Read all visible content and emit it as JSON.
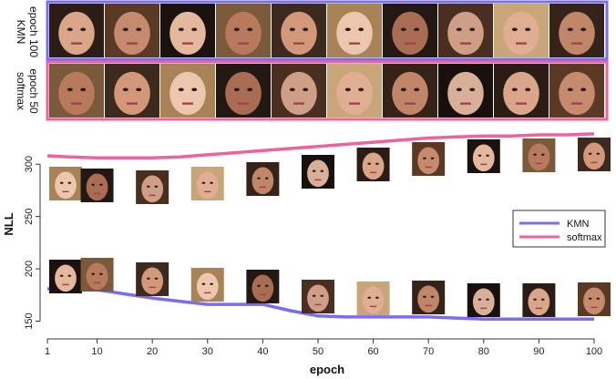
{
  "sample_grids": [
    {
      "label_line1": "KMN",
      "label_line2": "epoch 100",
      "border_color": "#7b6cf6",
      "tiles": 10
    },
    {
      "label_line1": "softmax",
      "label_line2": "epoch 50",
      "border_color": "#f0629a",
      "tiles": 10
    }
  ],
  "chart_data": {
    "type": "line",
    "title": "",
    "xlabel": "epoch",
    "ylabel": "NLL",
    "xlim": [
      1,
      100
    ],
    "ylim": [
      140,
      335
    ],
    "xticks": [
      1,
      10,
      20,
      30,
      40,
      50,
      60,
      70,
      80,
      90,
      100
    ],
    "yticks": [
      150,
      200,
      250,
      300
    ],
    "grid": false,
    "legend_position": "right",
    "x": [
      1,
      5,
      10,
      15,
      20,
      25,
      30,
      35,
      40,
      45,
      50,
      55,
      60,
      65,
      70,
      75,
      80,
      85,
      90,
      95,
      100
    ],
    "series": [
      {
        "name": "KMN",
        "color": "#7b6cf6",
        "values": [
          181,
          180,
          180,
          176,
          172,
          169,
          166,
          166,
          166,
          160,
          155,
          154,
          154,
          154,
          154,
          153,
          152,
          152,
          152,
          152,
          152
        ]
      },
      {
        "name": "softmax",
        "color": "#f0629a",
        "values": [
          308,
          307,
          306,
          306,
          306,
          307,
          309,
          311,
          313,
          315,
          317,
          319,
          321,
          323,
          325,
          326,
          327,
          327,
          328,
          328,
          329
        ]
      }
    ],
    "face_samples": {
      "KMN": {
        "epochs": [
          1,
          10,
          20,
          30,
          40,
          50,
          60,
          70,
          80,
          90,
          100
        ]
      },
      "softmax": {
        "epochs": [
          1,
          10,
          20,
          30,
          40,
          50,
          60,
          70,
          80,
          90,
          100
        ]
      }
    }
  }
}
